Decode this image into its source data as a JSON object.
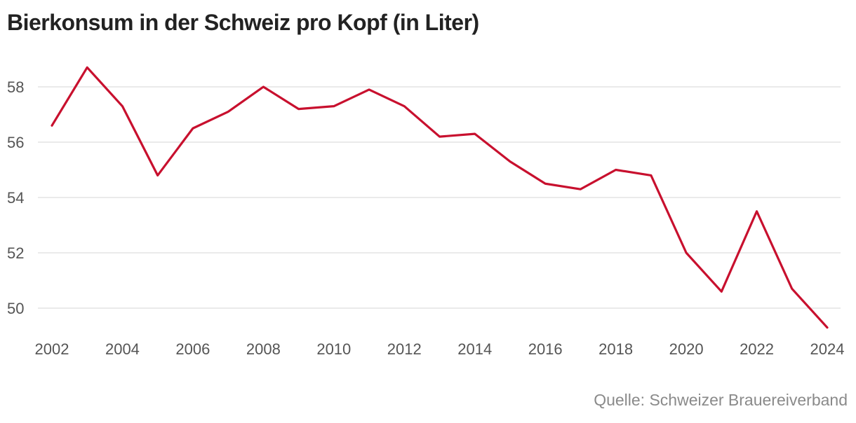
{
  "chart_data": {
    "type": "line",
    "title": "Bierkonsum in der Schweiz pro Kopf (in Liter)",
    "xlabel": "",
    "ylabel": "",
    "x": [
      2002,
      2003,
      2004,
      2005,
      2006,
      2007,
      2008,
      2009,
      2010,
      2011,
      2012,
      2013,
      2014,
      2015,
      2016,
      2017,
      2018,
      2019,
      2020,
      2021,
      2022,
      2023,
      2024
    ],
    "series": [
      {
        "values": [
          56.6,
          58.7,
          57.3,
          54.8,
          56.5,
          57.1,
          58.0,
          57.2,
          57.3,
          57.9,
          57.3,
          56.2,
          56.3,
          55.3,
          54.5,
          54.3,
          55.0,
          54.8,
          52.0,
          50.6,
          53.5,
          50.7,
          49.3
        ],
        "color": "#c8102e"
      }
    ],
    "xticks": [
      "2002",
      "2004",
      "2006",
      "2008",
      "2010",
      "2012",
      "2014",
      "2016",
      "2018",
      "2020",
      "2022",
      "2024"
    ],
    "yticks": [
      "50",
      "52",
      "54",
      "56",
      "58"
    ],
    "ylim": [
      49.0,
      59.0
    ],
    "xlim": [
      2002,
      2024
    ],
    "grid": true,
    "legend": "none",
    "source": "Quelle: Schweizer Brauereiverband"
  }
}
